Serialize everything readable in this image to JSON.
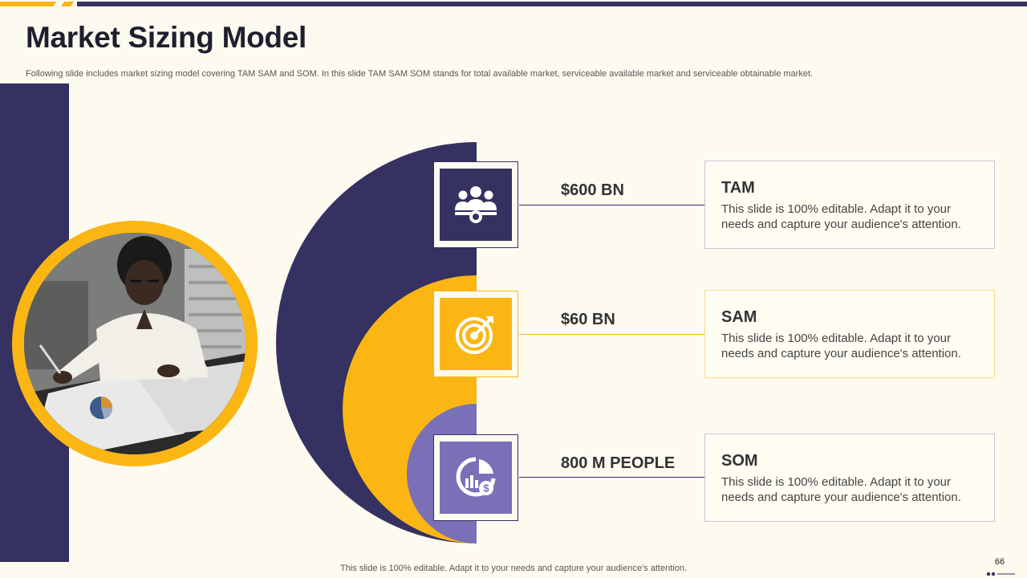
{
  "colors": {
    "navy": "#353160",
    "gold": "#fbb614",
    "purple": "#7a70b8",
    "background": "#fdfaf0"
  },
  "slide": {
    "title": "Market Sizing Model",
    "subtitle": "Following slide includes market sizing model covering TAM  SAM  and SOM.  In this slide TAM SAM  SOM stands for total available market, serviceable available market and serviceable obtainable market.",
    "footer_note": "This slide is 100% editable. Adapt it to your needs and capture your audience's attention.",
    "page_number": "66"
  },
  "markets": [
    {
      "value": "$600 BN",
      "title": "TAM",
      "description": "This slide is 100% editable. Adapt it to your needs and capture your audience's attention.",
      "icon": "team-award-icon"
    },
    {
      "value": "$60 BN",
      "title": "SAM",
      "description": "This slide is 100% editable. Adapt it to your needs and capture your audience's attention.",
      "icon": "target-icon"
    },
    {
      "value": "800 M PEOPLE",
      "title": "SOM",
      "description": "This slide is 100% editable. Adapt it to your needs and capture your audience's attention.",
      "icon": "growth-chart-dollar-icon"
    }
  ]
}
